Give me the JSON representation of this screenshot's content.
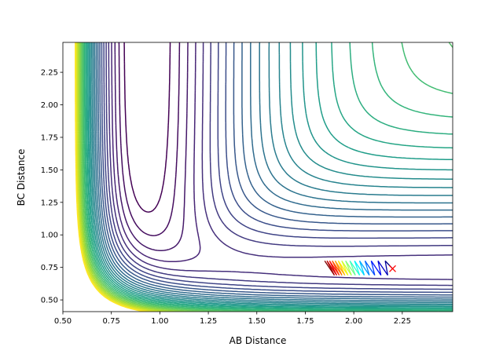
{
  "chart_data": {
    "type": "contour",
    "title": "",
    "xlabel": "AB Distance",
    "ylabel": "BC Distance",
    "xlim": [
      0.5,
      2.51
    ],
    "ylim": [
      0.41,
      2.48
    ],
    "xticks": [
      "0.50",
      "0.75",
      "1.00",
      "1.25",
      "1.50",
      "1.75",
      "2.00",
      "2.25"
    ],
    "yticks": [
      "0.50",
      "0.75",
      "1.00",
      "1.25",
      "1.50",
      "1.75",
      "2.00",
      "2.25"
    ],
    "contour_colormap": "viridis",
    "grid": false,
    "trajectory": {
      "colormap": "jet",
      "points": [
        [
          1.85,
          0.8
        ],
        [
          1.9,
          0.69
        ],
        [
          1.862,
          0.8
        ],
        [
          1.912,
          0.69
        ],
        [
          1.875,
          0.8
        ],
        [
          1.925,
          0.69
        ],
        [
          1.889,
          0.8
        ],
        [
          1.939,
          0.69
        ],
        [
          1.904,
          0.8
        ],
        [
          1.954,
          0.69
        ],
        [
          1.92,
          0.8
        ],
        [
          1.97,
          0.69
        ],
        [
          1.938,
          0.8
        ],
        [
          1.988,
          0.69
        ],
        [
          1.958,
          0.8
        ],
        [
          2.008,
          0.69
        ],
        [
          1.98,
          0.8
        ],
        [
          2.03,
          0.69
        ],
        [
          2.004,
          0.8
        ],
        [
          2.054,
          0.69
        ],
        [
          2.03,
          0.8
        ],
        [
          2.08,
          0.69
        ],
        [
          2.058,
          0.8
        ],
        [
          2.108,
          0.69
        ],
        [
          2.09,
          0.8
        ],
        [
          2.14,
          0.69
        ],
        [
          2.125,
          0.8
        ],
        [
          2.175,
          0.69
        ],
        [
          2.162,
          0.8
        ],
        [
          2.2,
          0.74
        ]
      ]
    },
    "end_marker": {
      "x": 2.2,
      "y": 0.74,
      "symbol": "x",
      "color": "#ff0000"
    }
  }
}
